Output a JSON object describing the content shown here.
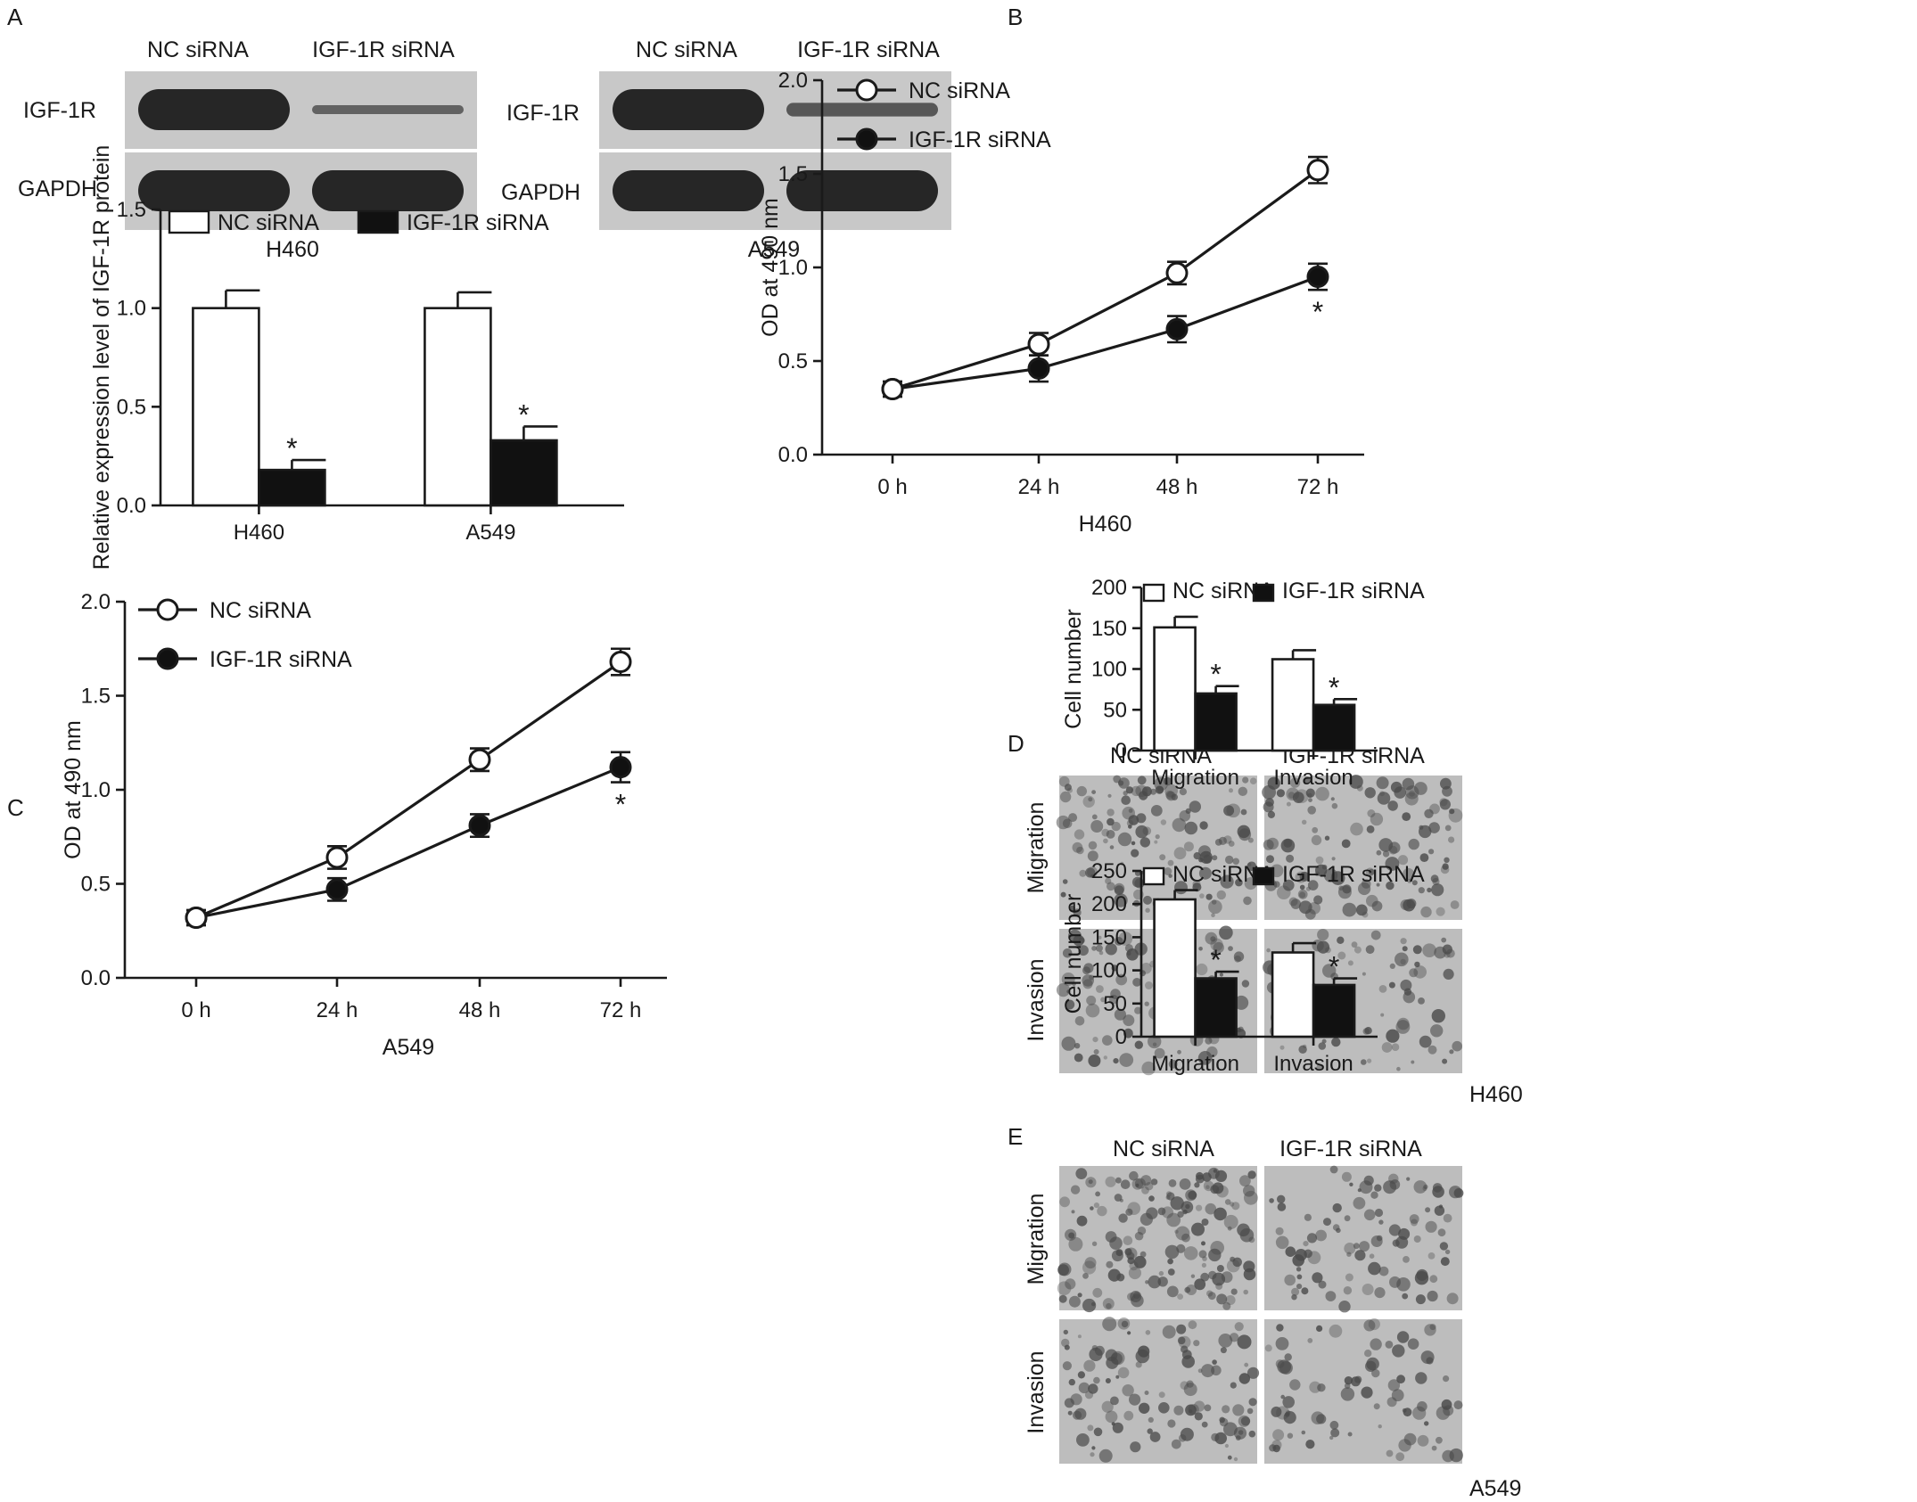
{
  "colors": {
    "ink": "#1a1a1a",
    "open_fill": "#ffffff",
    "filled": "#111111",
    "blot_bg": "#c8c8c8",
    "band": "#262626",
    "micro_bg": "#bdbdbd",
    "micro_cell": "#4a4a4a"
  },
  "panel_a": {
    "letter": "A",
    "blots": [
      {
        "cell_line": "H460",
        "lanes": [
          "NC siRNA",
          "IGF-1R siRNA"
        ],
        "rows": [
          {
            "label": "IGF-1R",
            "band_strength": [
              1.0,
              0.18
            ]
          },
          {
            "label": "GAPDH",
            "band_strength": [
              1.0,
              1.0
            ]
          }
        ]
      },
      {
        "cell_line": "A549",
        "lanes": [
          "NC siRNA",
          "IGF-1R siRNA"
        ],
        "rows": [
          {
            "label": "IGF-1R",
            "band_strength": [
              1.0,
              0.33
            ]
          },
          {
            "label": "GAPDH",
            "band_strength": [
              1.0,
              1.0
            ]
          }
        ]
      }
    ]
  },
  "panel_b": {
    "letter": "B"
  },
  "panel_c": {
    "letter": "C"
  },
  "panel_d": {
    "letter": "D",
    "cell_line": "H460",
    "columns": [
      "NC siRNA",
      "IGF-1R siRNA"
    ],
    "rows": [
      "Migration",
      "Invasion"
    ],
    "micrograph_density": [
      [
        0.55,
        0.5
      ],
      [
        0.35,
        0.22
      ]
    ]
  },
  "panel_e": {
    "letter": "E",
    "cell_line": "A549",
    "columns": [
      "NC siRNA",
      "IGF-1R siRNA"
    ],
    "rows": [
      "Migration",
      "Invasion"
    ],
    "micrograph_density": [
      [
        0.65,
        0.3
      ],
      [
        0.4,
        0.22
      ]
    ]
  },
  "chart_data": [
    {
      "id": "a_bar",
      "type": "bar",
      "title": "",
      "xlabel": "",
      "ylabel": "Relative expression level of IGF-1R protein",
      "categories": [
        "H460",
        "A549"
      ],
      "ylim": [
        0,
        1.5
      ],
      "yticks": [
        "0.0",
        "0.5",
        "1.0",
        "1.5"
      ],
      "series": [
        {
          "name": "NC siRNA",
          "fill": "#ffffff",
          "values": [
            1.0,
            1.0
          ],
          "errors": [
            0.09,
            0.08
          ],
          "marks": [
            "",
            ""
          ]
        },
        {
          "name": "IGF-1R siRNA",
          "fill": "#111111",
          "values": [
            0.18,
            0.33
          ],
          "errors": [
            0.05,
            0.07
          ],
          "marks": [
            "*",
            "*"
          ]
        }
      ],
      "legend_position": "top"
    },
    {
      "id": "b_line",
      "type": "line",
      "title": "",
      "xlabel": "H460",
      "ylabel": "OD at 490 nm",
      "categories": [
        "0 h",
        "24 h",
        "48 h",
        "72 h"
      ],
      "ylim": [
        0,
        2.0
      ],
      "yticks": [
        "0.0",
        "0.5",
        "1.0",
        "1.5",
        "2.0"
      ],
      "series": [
        {
          "name": "NC siRNA",
          "marker": "open-circle",
          "values": [
            0.35,
            0.59,
            0.97,
            1.52
          ],
          "errors": [
            0.04,
            0.06,
            0.06,
            0.07
          ]
        },
        {
          "name": "IGF-1R siRNA",
          "marker": "filled-circle",
          "values": [
            0.35,
            0.46,
            0.67,
            0.95
          ],
          "errors": [
            0.04,
            0.07,
            0.07,
            0.07
          ]
        }
      ],
      "annotations": [
        {
          "x": "72 h",
          "text": "*"
        }
      ],
      "legend_position": "top-left"
    },
    {
      "id": "c_line",
      "type": "line",
      "title": "",
      "xlabel": "A549",
      "ylabel": "OD at 490 nm",
      "categories": [
        "0 h",
        "24 h",
        "48 h",
        "72 h"
      ],
      "ylim": [
        0,
        2.0
      ],
      "yticks": [
        "0.0",
        "0.5",
        "1.0",
        "1.5",
        "2.0"
      ],
      "series": [
        {
          "name": "NC siRNA",
          "marker": "open-circle",
          "values": [
            0.32,
            0.64,
            1.16,
            1.68
          ],
          "errors": [
            0.04,
            0.06,
            0.06,
            0.07
          ]
        },
        {
          "name": "IGF-1R siRNA",
          "marker": "filled-circle",
          "values": [
            0.32,
            0.47,
            0.81,
            1.12
          ],
          "errors": [
            0.04,
            0.06,
            0.06,
            0.08
          ]
        }
      ],
      "annotations": [
        {
          "x": "72 h",
          "text": "*"
        }
      ],
      "legend_position": "top-left"
    },
    {
      "id": "d_bar",
      "type": "bar",
      "title": "",
      "xlabel": "",
      "ylabel": "Cell number",
      "categories": [
        "Migration",
        "Invasion"
      ],
      "ylim": [
        0,
        200
      ],
      "yticks": [
        "0",
        "50",
        "100",
        "150",
        "200"
      ],
      "series": [
        {
          "name": "NC siRNA",
          "fill": "#ffffff",
          "values": [
            151,
            112
          ],
          "errors": [
            13,
            11
          ],
          "marks": [
            "",
            ""
          ]
        },
        {
          "name": "IGF-1R siRNA",
          "fill": "#111111",
          "values": [
            70,
            56
          ],
          "errors": [
            9,
            7
          ],
          "marks": [
            "*",
            "*"
          ]
        }
      ],
      "legend_position": "top"
    },
    {
      "id": "e_bar",
      "type": "bar",
      "title": "",
      "xlabel": "",
      "ylabel": "Cell number",
      "categories": [
        "Migration",
        "Invasion"
      ],
      "ylim": [
        0,
        250
      ],
      "yticks": [
        "0",
        "50",
        "100",
        "150",
        "200",
        "250"
      ],
      "series": [
        {
          "name": "NC siRNA",
          "fill": "#ffffff",
          "values": [
            207,
            127
          ],
          "errors": [
            14,
            14
          ],
          "marks": [
            "",
            ""
          ]
        },
        {
          "name": "IGF-1R siRNA",
          "fill": "#111111",
          "values": [
            88,
            78
          ],
          "errors": [
            10,
            10
          ],
          "marks": [
            "*",
            "*"
          ]
        }
      ],
      "legend_position": "top"
    }
  ]
}
